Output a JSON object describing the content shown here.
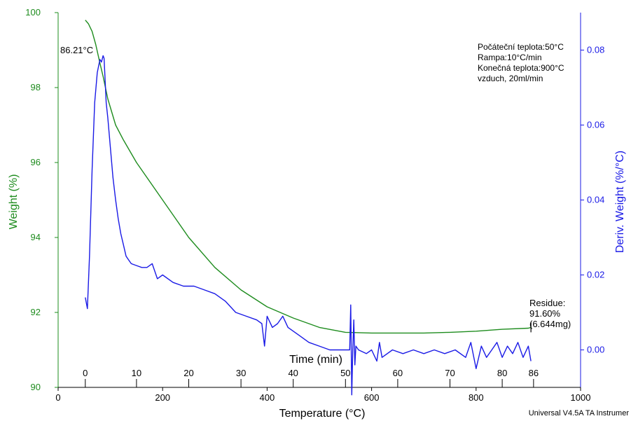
{
  "chart_data": {
    "type": "line",
    "xlabel": "Temperature (°C)",
    "ylabel": "Weight (%)",
    "y2label": "Deriv. Weight (%/°C)",
    "time_label": "Time (min)",
    "xlim": [
      0,
      1000
    ],
    "ylim": [
      90,
      100
    ],
    "y2lim": [
      -0.01,
      0.09
    ],
    "x_ticks": [
      0,
      200,
      400,
      600,
      800,
      1000
    ],
    "y_ticks": [
      90,
      92,
      94,
      96,
      98,
      100
    ],
    "y2_ticks": [
      0.0,
      0.02,
      0.04,
      0.06,
      0.08
    ],
    "y2_tick_labels": [
      "0.00",
      "0.02",
      "0.04",
      "0.06",
      "0.08"
    ],
    "time_ticks": [
      {
        "label": "0",
        "temp": 52
      },
      {
        "label": "10",
        "temp": 150
      },
      {
        "label": "20",
        "temp": 250
      },
      {
        "label": "30",
        "temp": 350
      },
      {
        "label": "40",
        "temp": 450
      },
      {
        "label": "50",
        "temp": 550
      },
      {
        "label": "60",
        "temp": 650
      },
      {
        "label": "70",
        "temp": 750
      },
      {
        "label": "80",
        "temp": 850
      },
      {
        "label": "86",
        "temp": 910
      }
    ],
    "conditions": [
      "Počáteční teplota:50°C",
      "Rampa:10°C/min",
      "Konečná teplota:900°C",
      "vzduch, 20ml/min"
    ],
    "peak_label": "86.21°C",
    "residue_labels": [
      "Residue:",
      "91.60%",
      "(6.644mg)"
    ],
    "residue_point": [
      905,
      91.6
    ],
    "footer": "Universal V4.5A TA Instrumer",
    "colors": {
      "weight": "#1e8c1e",
      "deriv": "#1a1ae6",
      "axis": "#000000"
    },
    "series": [
      {
        "name": "Weight (%)",
        "axis": "left",
        "x": [
          52,
          58,
          65,
          72,
          80,
          86,
          95,
          110,
          125,
          150,
          200,
          250,
          300,
          350,
          400,
          450,
          500,
          550,
          600,
          650,
          700,
          750,
          800,
          850,
          900,
          905
        ],
        "values": [
          99.8,
          99.7,
          99.5,
          99.15,
          98.65,
          98.3,
          97.7,
          97.0,
          96.6,
          96.0,
          95.0,
          94.0,
          93.2,
          92.6,
          92.15,
          91.85,
          91.6,
          91.47,
          91.45,
          91.45,
          91.45,
          91.47,
          91.5,
          91.55,
          91.58,
          91.6
        ]
      },
      {
        "name": "Deriv. Weight (%/°C)",
        "axis": "right",
        "x": [
          52,
          56,
          60,
          65,
          70,
          75,
          80,
          83,
          86,
          88,
          90,
          92,
          95,
          100,
          105,
          110,
          115,
          120,
          125,
          130,
          135,
          140,
          150,
          160,
          170,
          180,
          190,
          200,
          220,
          240,
          260,
          280,
          300,
          320,
          340,
          360,
          380,
          390,
          395,
          400,
          410,
          420,
          430,
          440,
          460,
          480,
          500,
          520,
          540,
          550,
          558,
          560,
          562,
          564,
          566,
          568,
          570,
          575,
          590,
          600,
          610,
          615,
          620,
          640,
          660,
          680,
          700,
          720,
          740,
          760,
          780,
          790,
          800,
          810,
          820,
          830,
          840,
          850,
          860,
          870,
          880,
          890,
          900,
          905
        ],
        "values": [
          0.014,
          0.011,
          0.025,
          0.048,
          0.066,
          0.074,
          0.0775,
          0.0768,
          0.0785,
          0.0778,
          0.072,
          0.066,
          0.062,
          0.054,
          0.046,
          0.04,
          0.035,
          0.031,
          0.028,
          0.025,
          0.024,
          0.023,
          0.0225,
          0.022,
          0.022,
          0.023,
          0.019,
          0.02,
          0.018,
          0.017,
          0.017,
          0.016,
          0.015,
          0.013,
          0.01,
          0.009,
          0.008,
          0.007,
          0.001,
          0.009,
          0.006,
          0.007,
          0.009,
          0.006,
          0.004,
          0.002,
          0.001,
          0.0,
          0.0,
          0.0,
          0.0,
          0.012,
          -0.012,
          0.0,
          0.008,
          -0.004,
          0.001,
          0.0,
          -0.001,
          0.0,
          -0.003,
          0.002,
          -0.002,
          0.0,
          -0.001,
          0.0,
          -0.001,
          0.0,
          -0.001,
          0.0,
          -0.002,
          0.002,
          -0.005,
          0.001,
          -0.002,
          0.0,
          0.002,
          -0.002,
          0.001,
          -0.001,
          0.002,
          -0.002,
          0.001,
          -0.003
        ]
      }
    ]
  }
}
